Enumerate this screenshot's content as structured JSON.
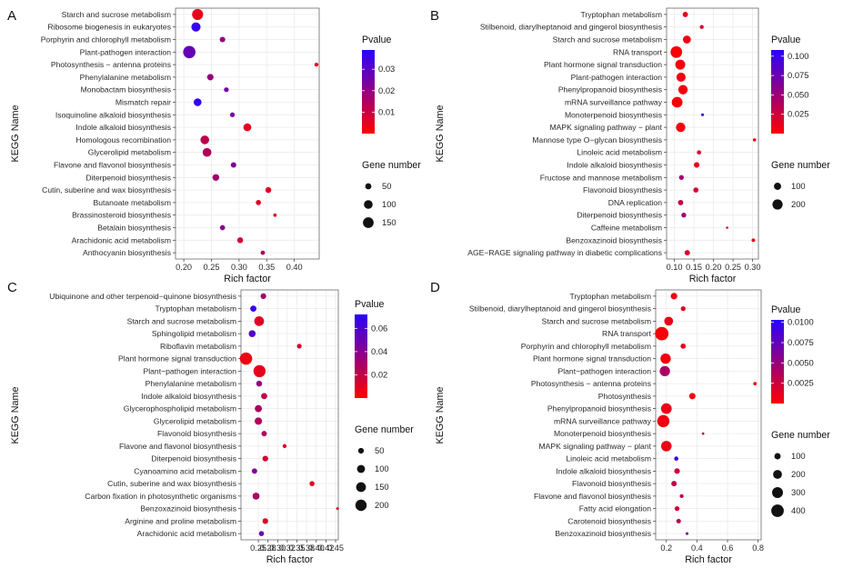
{
  "chart_data": [
    {
      "label": "A",
      "type": "scatter",
      "xlabel": "Rich factor",
      "ylabel": "KEGG Name",
      "xlim": [
        0.185,
        0.445
      ],
      "xticks": [
        0.2,
        0.25,
        0.3,
        0.35,
        0.4
      ],
      "xtick_labels": [
        "0.20",
        "0.25",
        "0.30",
        "0.35",
        "0.40"
      ],
      "color_legend": {
        "title": "Pvalue",
        "range": [
          0.0,
          0.039
        ],
        "ticks": [
          0.01,
          0.02,
          0.03
        ],
        "tick_labels": [
          "0.01",
          "0.02",
          "0.03"
        ]
      },
      "size_legend": {
        "title": "Gene number",
        "values": [
          50,
          100,
          150
        ],
        "labels": [
          "50",
          "100",
          "150"
        ],
        "max": 200
      },
      "points": [
        {
          "name": "Starch and sucrose metabolism",
          "x": 0.225,
          "genes": 160,
          "p": 0.004
        },
        {
          "name": "Ribosome biogenesis in eukaryotes",
          "x": 0.222,
          "genes": 110,
          "p": 0.036
        },
        {
          "name": "Porphyrin and chlorophyll metabolism",
          "x": 0.27,
          "genes": 40,
          "p": 0.02
        },
        {
          "name": "Plant-pathogen interaction",
          "x": 0.21,
          "genes": 200,
          "p": 0.028
        },
        {
          "name": "Photosynthesis − antenna proteins",
          "x": 0.44,
          "genes": 20,
          "p": 0.003
        },
        {
          "name": "Phenylalanine metabolism",
          "x": 0.248,
          "genes": 55,
          "p": 0.019
        },
        {
          "name": "Monobactam biosynthesis",
          "x": 0.277,
          "genes": 30,
          "p": 0.025
        },
        {
          "name": "Mismatch repair",
          "x": 0.225,
          "genes": 80,
          "p": 0.037
        },
        {
          "name": "Isoquinoline alkaloid biosynthesis",
          "x": 0.288,
          "genes": 30,
          "p": 0.024
        },
        {
          "name": "Indole alkaloid biosynthesis",
          "x": 0.315,
          "genes": 80,
          "p": 0.005
        },
        {
          "name": "Homologous recombination",
          "x": 0.238,
          "genes": 100,
          "p": 0.012
        },
        {
          "name": "Glycerolipid metabolism",
          "x": 0.242,
          "genes": 100,
          "p": 0.014
        },
        {
          "name": "Flavone and flavonol biosynthesis",
          "x": 0.29,
          "genes": 40,
          "p": 0.024
        },
        {
          "name": "Diterpenoid biosynthesis",
          "x": 0.258,
          "genes": 60,
          "p": 0.016
        },
        {
          "name": "Cutin, suberine and wax biosynthesis",
          "x": 0.353,
          "genes": 45,
          "p": 0.005
        },
        {
          "name": "Butanoate metabolism",
          "x": 0.335,
          "genes": 35,
          "p": 0.006
        },
        {
          "name": "Brassinosteroid biosynthesis",
          "x": 0.365,
          "genes": 15,
          "p": 0.004
        },
        {
          "name": "Betalain biosynthesis",
          "x": 0.27,
          "genes": 35,
          "p": 0.022
        },
        {
          "name": "Arachidonic acid metabolism",
          "x": 0.302,
          "genes": 45,
          "p": 0.008
        },
        {
          "name": "Anthocyanin biosynthesis",
          "x": 0.343,
          "genes": 25,
          "p": 0.015
        }
      ]
    },
    {
      "label": "B",
      "type": "scatter",
      "xlabel": "Rich factor",
      "ylabel": "KEGG Name",
      "xlim": [
        0.08,
        0.315
      ],
      "xticks": [
        0.1,
        0.15,
        0.2,
        0.25,
        0.3
      ],
      "xtick_labels": [
        "0.10",
        "0.15",
        "0.20",
        "0.25",
        "0.30"
      ],
      "color_legend": {
        "title": "Pvalue",
        "range": [
          0.0,
          0.108
        ],
        "ticks": [
          0.025,
          0.05,
          0.075,
          0.1
        ],
        "tick_labels": [
          "0.025",
          "0.050",
          "0.075",
          "0.100"
        ]
      },
      "size_legend": {
        "title": "Gene number",
        "values": [
          100,
          200
        ],
        "labels": [
          "100",
          "200"
        ],
        "max": 260
      },
      "points": [
        {
          "name": "Tryptophan metabolism",
          "x": 0.128,
          "genes": 55,
          "p": 0.012
        },
        {
          "name": "Stilbenoid, diarylheptanoid and gingerol biosynthesis",
          "x": 0.17,
          "genes": 30,
          "p": 0.02
        },
        {
          "name": "Starch and sucrose metabolism",
          "x": 0.132,
          "genes": 120,
          "p": 0.008
        },
        {
          "name": "RNA transport",
          "x": 0.105,
          "genes": 260,
          "p": 0.003
        },
        {
          "name": "Plant hormone signal transduction",
          "x": 0.115,
          "genes": 190,
          "p": 0.006
        },
        {
          "name": "Plant-pathogen interaction",
          "x": 0.117,
          "genes": 160,
          "p": 0.008
        },
        {
          "name": "Phenylpropanoid biosynthesis",
          "x": 0.122,
          "genes": 170,
          "p": 0.006
        },
        {
          "name": "mRNA surveillance pathway",
          "x": 0.107,
          "genes": 220,
          "p": 0.003
        },
        {
          "name": "Monoterpenoid biosynthesis",
          "x": 0.172,
          "genes": 15,
          "p": 0.1
        },
        {
          "name": "MAPK signaling pathway − plant",
          "x": 0.116,
          "genes": 170,
          "p": 0.005
        },
        {
          "name": "Mannose type O−glycan biosynthesis",
          "x": 0.305,
          "genes": 20,
          "p": 0.01
        },
        {
          "name": "Linoleic acid metabolism",
          "x": 0.163,
          "genes": 35,
          "p": 0.018
        },
        {
          "name": "Indole alkaloid biosynthesis",
          "x": 0.157,
          "genes": 60,
          "p": 0.01
        },
        {
          "name": "Fructose and mannose metabolism",
          "x": 0.118,
          "genes": 45,
          "p": 0.045
        },
        {
          "name": "Flavonoid biosynthesis",
          "x": 0.155,
          "genes": 50,
          "p": 0.02
        },
        {
          "name": "DNA replication",
          "x": 0.116,
          "genes": 55,
          "p": 0.03
        },
        {
          "name": "Diterpenoid biosynthesis",
          "x": 0.124,
          "genes": 45,
          "p": 0.05
        },
        {
          "name": "Caffeine metabolism",
          "x": 0.235,
          "genes": 10,
          "p": 0.015
        },
        {
          "name": "Benzoxazinoid biosynthesis",
          "x": 0.302,
          "genes": 25,
          "p": 0.012
        },
        {
          "name": "AGE−RAGE signaling pathway in diabetic complications",
          "x": 0.133,
          "genes": 55,
          "p": 0.02
        }
      ]
    },
    {
      "label": "C",
      "type": "scatter",
      "xlabel": "Rich factor",
      "ylabel": "KEGG Name",
      "xlim": [
        0.205,
        0.457
      ],
      "xticks": [
        0.25,
        0.275,
        0.3,
        0.325,
        0.35,
        0.375,
        0.4,
        0.425,
        0.45
      ],
      "xtick_labels": [
        "0.25",
        "0.28",
        "0.30",
        "0.32",
        "0.35",
        "0.38",
        "0.40",
        "0.42",
        "0.45"
      ],
      "xtick_labels_shown": [
        "0.25",
        "0.28",
        "0.30",
        "0.32",
        "0.35",
        "0.38",
        "0.40",
        "0.42",
        "0.45"
      ],
      "color_legend": {
        "title": "Pvalue",
        "range": [
          0.0,
          0.072
        ],
        "ticks": [
          0.02,
          0.04,
          0.06
        ],
        "tick_labels": [
          "0.02",
          "0.04",
          "0.06"
        ]
      },
      "size_legend": {
        "title": "Gene number",
        "values": [
          50,
          100,
          150,
          200
        ],
        "labels": [
          "50",
          "100",
          "150",
          "200"
        ],
        "max": 240
      },
      "points": [
        {
          "name": "Ubiquinone and other terpenoid−quinone biosynthesis",
          "x": 0.263,
          "genes": 50,
          "p": 0.03
        },
        {
          "name": "Tryptophan metabolism",
          "x": 0.237,
          "genes": 60,
          "p": 0.068
        },
        {
          "name": "Starch and sucrose metabolism",
          "x": 0.252,
          "genes": 150,
          "p": 0.01
        },
        {
          "name": "Sphingolipid metabolism",
          "x": 0.234,
          "genes": 75,
          "p": 0.058
        },
        {
          "name": "Riboflavin metabolism",
          "x": 0.356,
          "genes": 35,
          "p": 0.012
        },
        {
          "name": "Plant hormone signal transduction",
          "x": 0.218,
          "genes": 240,
          "p": 0.006
        },
        {
          "name": "Plant−pathogen interaction",
          "x": 0.253,
          "genes": 230,
          "p": 0.008
        },
        {
          "name": "Phenylalanine metabolism",
          "x": 0.252,
          "genes": 55,
          "p": 0.035
        },
        {
          "name": "Indole alkaloid biosynthesis",
          "x": 0.265,
          "genes": 60,
          "p": 0.02
        },
        {
          "name": "Glycerophospholipid metabolism",
          "x": 0.25,
          "genes": 80,
          "p": 0.028
        },
        {
          "name": "Glycerolipid metabolism",
          "x": 0.25,
          "genes": 85,
          "p": 0.025
        },
        {
          "name": "Flavonoid biosynthesis",
          "x": 0.265,
          "genes": 45,
          "p": 0.025
        },
        {
          "name": "Flavone and flavonol biosynthesis",
          "x": 0.318,
          "genes": 25,
          "p": 0.012
        },
        {
          "name": "Diterpenoid biosynthesis",
          "x": 0.268,
          "genes": 50,
          "p": 0.015
        },
        {
          "name": "Cyanoamino acid metabolism",
          "x": 0.24,
          "genes": 45,
          "p": 0.042
        },
        {
          "name": "Cutin, suberine and wax biosynthesis",
          "x": 0.389,
          "genes": 40,
          "p": 0.008
        },
        {
          "name": "Carbon fixation in photosynthetic organisms",
          "x": 0.244,
          "genes": 75,
          "p": 0.028
        },
        {
          "name": "Benzoxazinoid biosynthesis",
          "x": 0.455,
          "genes": 12,
          "p": 0.01
        },
        {
          "name": "Arginine and proline metabolism",
          "x": 0.268,
          "genes": 50,
          "p": 0.012
        },
        {
          "name": "Arachidonic acid metabolism",
          "x": 0.258,
          "genes": 40,
          "p": 0.05
        }
      ]
    },
    {
      "label": "D",
      "type": "scatter",
      "xlabel": "Rich factor",
      "ylabel": "KEGG Name",
      "xlim": [
        0.13,
        0.82
      ],
      "xticks": [
        0.2,
        0.4,
        0.6,
        0.8
      ],
      "xtick_labels": [
        "0.2",
        "0.4",
        "0.6",
        "0.8"
      ],
      "color_legend": {
        "title": "Pvalue",
        "range": [
          0.0,
          0.0103
        ],
        "ticks": [
          0.0025,
          0.005,
          0.0075,
          0.01
        ],
        "tick_labels": [
          "0.0025",
          "0.0050",
          "0.0075",
          "0.0100"
        ]
      },
      "size_legend": {
        "title": "Gene number",
        "values": [
          100,
          200,
          300,
          400
        ],
        "labels": [
          "100",
          "200",
          "300",
          "400"
        ],
        "max": 460
      },
      "points": [
        {
          "name": "Tryptophan metabolism",
          "x": 0.25,
          "genes": 110,
          "p": 0.0008
        },
        {
          "name": "Stilbenoid, diarylheptanoid and gingerol biosynthesis",
          "x": 0.31,
          "genes": 60,
          "p": 0.0015
        },
        {
          "name": "Starch and sucrose metabolism",
          "x": 0.215,
          "genes": 200,
          "p": 0.001
        },
        {
          "name": "RNA transport",
          "x": 0.17,
          "genes": 460,
          "p": 0.0005
        },
        {
          "name": "Porphyrin and chlorophyll metabolism",
          "x": 0.31,
          "genes": 70,
          "p": 0.0012
        },
        {
          "name": "Plant hormone signal transduction",
          "x": 0.195,
          "genes": 270,
          "p": 0.0006
        },
        {
          "name": "Plant−pathogen interaction",
          "x": 0.19,
          "genes": 270,
          "p": 0.004
        },
        {
          "name": "Photosynthesis − antenna proteins",
          "x": 0.78,
          "genes": 30,
          "p": 0.0008
        },
        {
          "name": "Photosynthesis",
          "x": 0.37,
          "genes": 100,
          "p": 0.0005
        },
        {
          "name": "Phenylpropanoid biosynthesis",
          "x": 0.2,
          "genes": 290,
          "p": 0.0009
        },
        {
          "name": "mRNA surveillance pathway",
          "x": 0.18,
          "genes": 380,
          "p": 0.0007
        },
        {
          "name": "Monoterpenoid biosynthesis",
          "x": 0.44,
          "genes": 15,
          "p": 0.004
        },
        {
          "name": "MAPK signaling pathway − plant",
          "x": 0.2,
          "genes": 280,
          "p": 0.0008
        },
        {
          "name": "Linoleic acid metabolism",
          "x": 0.265,
          "genes": 45,
          "p": 0.0095
        },
        {
          "name": "Indole alkaloid biosynthesis",
          "x": 0.27,
          "genes": 80,
          "p": 0.0025
        },
        {
          "name": "Flavonoid biosynthesis",
          "x": 0.25,
          "genes": 75,
          "p": 0.003
        },
        {
          "name": "Flavone and flavonol biosynthesis",
          "x": 0.3,
          "genes": 40,
          "p": 0.003
        },
        {
          "name": "Fatty acid elongation",
          "x": 0.27,
          "genes": 60,
          "p": 0.002
        },
        {
          "name": "Carotenoid biosynthesis",
          "x": 0.28,
          "genes": 55,
          "p": 0.003
        },
        {
          "name": "Benzoxazinoid biosynthesis",
          "x": 0.335,
          "genes": 20,
          "p": 0.006
        }
      ]
    }
  ],
  "colors": {
    "low_p": "#ff0000",
    "high_p": "#0000ff",
    "grid": "#ebebeb",
    "frame": "#555555"
  }
}
